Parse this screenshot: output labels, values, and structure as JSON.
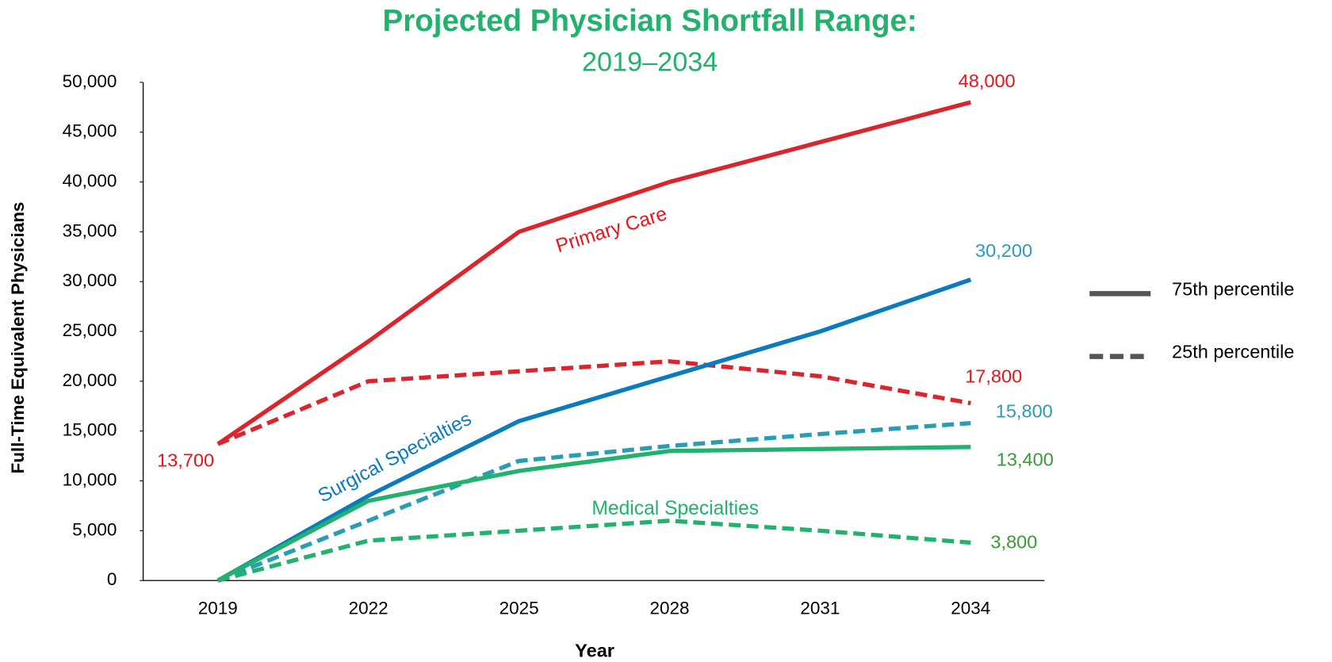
{
  "chart_data": {
    "type": "line",
    "title": "Projected Physician Shortfall Range:",
    "subtitle": "2019–2034",
    "x_label": "Year",
    "y_label": "Full-Time Equivalent Physicians",
    "categories": [
      "2019",
      "2022",
      "2025",
      "2028",
      "2031",
      "2034"
    ],
    "ylim": [
      0,
      50000
    ],
    "yticks": [
      {
        "value": 0,
        "label": "0"
      },
      {
        "value": 5000,
        "label": "5,000"
      },
      {
        "value": 10000,
        "label": "10,000"
      },
      {
        "value": 15000,
        "label": "15,000"
      },
      {
        "value": 20000,
        "label": "20,000"
      },
      {
        "value": 25000,
        "label": "25,000"
      },
      {
        "value": 30000,
        "label": "30,000"
      },
      {
        "value": 35000,
        "label": "35,000"
      },
      {
        "value": 40000,
        "label": "40,000"
      },
      {
        "value": 45000,
        "label": "45,000"
      },
      {
        "value": 50000,
        "label": "50,000"
      }
    ],
    "grid": false,
    "series": [
      {
        "color": "#d9262e",
        "dash": false,
        "label_color": "#e8141c",
        "values": [
          13700,
          24000,
          35000,
          40000,
          44000,
          48000
        ],
        "value_labels": [
          "13,700",
          null,
          null,
          null,
          null,
          "48,000"
        ]
      },
      {
        "color": "#d9262e",
        "dash": true,
        "label_color": "#e8141c",
        "values": [
          13700,
          20000,
          21000,
          22000,
          20500,
          17800
        ],
        "value_labels": [
          null,
          null,
          null,
          null,
          null,
          "17,800"
        ]
      },
      {
        "color": "#0a7bbd",
        "dash": false,
        "label_color": "#2a9db5",
        "values": [
          0,
          8500,
          16000,
          20500,
          25000,
          30200
        ],
        "value_labels": [
          null,
          null,
          null,
          null,
          null,
          "30,200"
        ]
      },
      {
        "color": "#2a9db5",
        "dash": true,
        "label_color": "#2a9db5",
        "values": [
          0,
          6000,
          12000,
          13500,
          14700,
          15800
        ],
        "value_labels": [
          null,
          null,
          null,
          null,
          null,
          "15,800"
        ]
      },
      {
        "color": "#23b26d",
        "dash": false,
        "label_color": "#3a9a3a",
        "values": [
          0,
          8000,
          11000,
          13000,
          13200,
          13400
        ],
        "value_labels": [
          null,
          null,
          null,
          null,
          null,
          "13,400"
        ]
      },
      {
        "color": "#23b26d",
        "dash": true,
        "label_color": "#3a9a3a",
        "values": [
          0,
          4000,
          5000,
          6000,
          5000,
          3800
        ],
        "value_labels": [
          null,
          null,
          null,
          null,
          null,
          "3,800"
        ]
      }
    ],
    "annotations": [
      "Primary Care",
      "Surgical Specialties",
      "Medical Specialties"
    ],
    "legend": [
      {
        "label": "75th percentile",
        "dash": false,
        "color": "#555555"
      },
      {
        "label": "25th percentile",
        "dash": true,
        "color": "#555555"
      }
    ]
  }
}
